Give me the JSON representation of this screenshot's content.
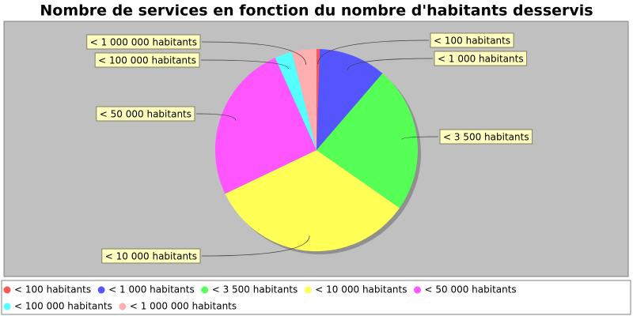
{
  "chart_data": {
    "type": "pie",
    "title": "Nombre de services en fonction du nombre d'habitants desservis",
    "categories": [
      "< 100 habitants",
      "< 1 000 habitants",
      "< 3 500 habitants",
      "< 10 000 habitants",
      "< 50 000 habitants",
      "< 100 000 habitants",
      "< 1 000 000 habitants"
    ],
    "values": [
      0.5,
      10.8,
      23.4,
      33.2,
      25.4,
      2.8,
      3.9
    ],
    "colors": [
      "#ff5555",
      "#5555ff",
      "#55ff55",
      "#ffff55",
      "#ff55ff",
      "#55ffff",
      "#ffafaf"
    ],
    "legend": "bottom"
  }
}
